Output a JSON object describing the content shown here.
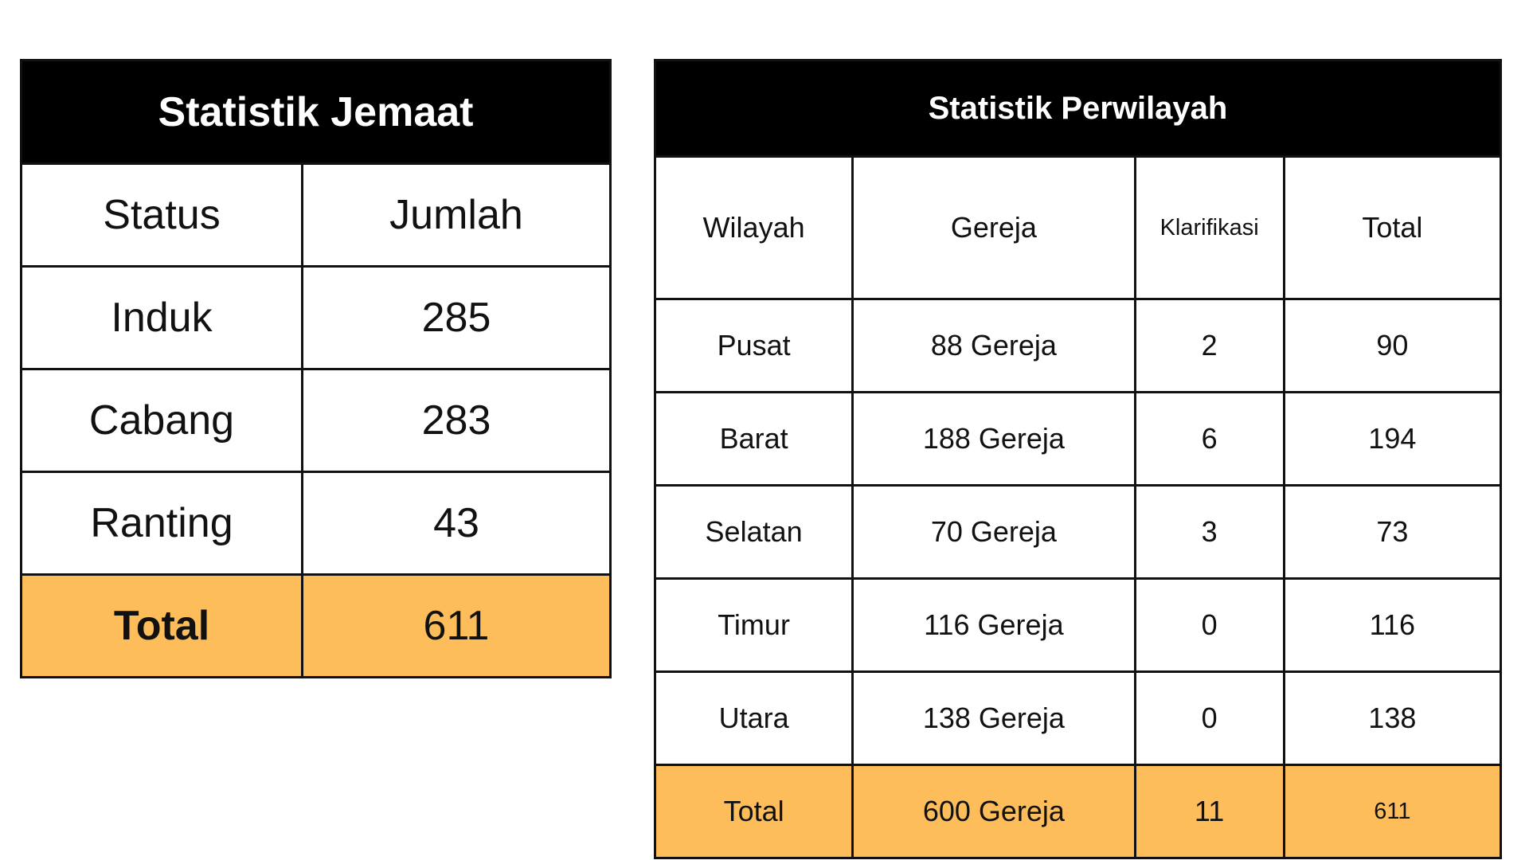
{
  "jemaat": {
    "title": "Statistik Jemaat",
    "headers": [
      "Status",
      "Jumlah"
    ],
    "rows": [
      {
        "status": "Induk",
        "jumlah": "285"
      },
      {
        "status": "Cabang",
        "jumlah": "283"
      },
      {
        "status": "Ranting",
        "jumlah": "43"
      }
    ],
    "total": {
      "label": "Total",
      "value": "611"
    }
  },
  "wilayah": {
    "title": "Statistik Perwilayah",
    "headers": [
      "Wilayah",
      "Gereja",
      "Klarifikasi",
      "Total"
    ],
    "rows": [
      {
        "wilayah": "Pusat",
        "gereja": "88 Gereja",
        "klarifikasi": "2",
        "total": "90"
      },
      {
        "wilayah": "Barat",
        "gereja": "188 Gereja",
        "klarifikasi": "6",
        "total": "194"
      },
      {
        "wilayah": "Selatan",
        "gereja": "70 Gereja",
        "klarifikasi": "3",
        "total": "73"
      },
      {
        "wilayah": "Timur",
        "gereja": "116 Gereja",
        "klarifikasi": "0",
        "total": "116"
      },
      {
        "wilayah": "Utara",
        "gereja": "138 Gereja",
        "klarifikasi": "0",
        "total": "138"
      }
    ],
    "total": {
      "wilayah": "Total",
      "gereja": "600 Gereja",
      "klarifikasi": "11",
      "total": "611"
    }
  },
  "colors": {
    "header_bg": "#000000",
    "total_row_bg": "#fdbd5a",
    "border": "#111111"
  }
}
